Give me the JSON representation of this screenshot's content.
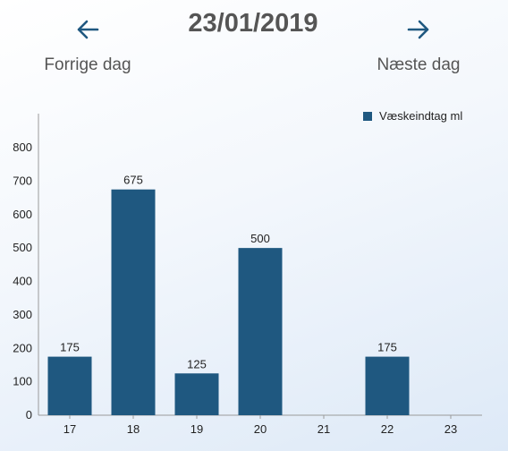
{
  "header": {
    "date": "23/01/2019",
    "prev_label": "Forrige dag",
    "next_label": "Næste dag",
    "prev_icon": "arrow-left-icon",
    "next_icon": "arrow-right-icon"
  },
  "colors": {
    "accent": "#1f5880",
    "bar": "#1f5880",
    "text": "#555555"
  },
  "chart_data": {
    "type": "bar",
    "categories": [
      "17",
      "18",
      "19",
      "20",
      "21",
      "22",
      "23"
    ],
    "series": [
      {
        "name": "Væskeindtag ml",
        "values": [
          175,
          675,
          125,
          500,
          0,
          175,
          0
        ]
      }
    ],
    "data_labels": [
      "175",
      "675",
      "125",
      "500",
      "",
      "175",
      ""
    ],
    "yticks": [
      0,
      100,
      200,
      300,
      400,
      500,
      600,
      700,
      800
    ],
    "ylim": [
      0,
      800
    ],
    "legend_position": "top-right",
    "grid": false
  }
}
